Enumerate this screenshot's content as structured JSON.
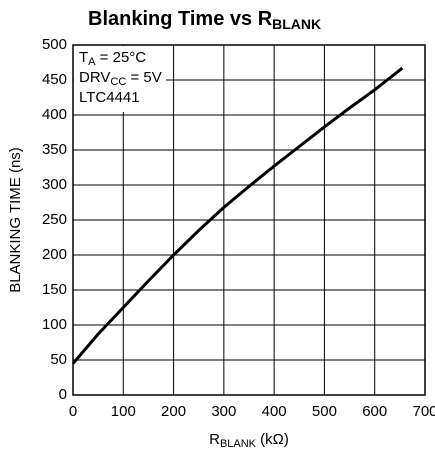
{
  "chart_data": {
    "type": "line",
    "title": [
      "Blanking Time vs R",
      "BLANK"
    ],
    "x_label": [
      "R",
      "BLANK",
      " (kΩ)"
    ],
    "y_label": "BLANKING TIME (ns)",
    "annotations": [
      [
        "T",
        "A",
        " = 25°C"
      ],
      [
        "DRV",
        "CC",
        " = 5V"
      ],
      [
        "LTC4441"
      ]
    ],
    "x": [
      0,
      50,
      100,
      150,
      200,
      250,
      300,
      350,
      400,
      450,
      500,
      550,
      600,
      655
    ],
    "series": [
      {
        "color": "#000000",
        "values": [
          45,
          87,
          125,
          163,
          200,
          235,
          268,
          298,
          327,
          355,
          383,
          410,
          436,
          467
        ]
      }
    ],
    "xlim": [
      0,
      700
    ],
    "xticks": [
      0,
      100,
      200,
      300,
      400,
      500,
      600,
      700
    ],
    "ylim": [
      0,
      500
    ],
    "yticks": [
      0,
      50,
      100,
      150,
      200,
      250,
      300,
      350,
      400,
      450,
      500
    ],
    "grid": true
  }
}
